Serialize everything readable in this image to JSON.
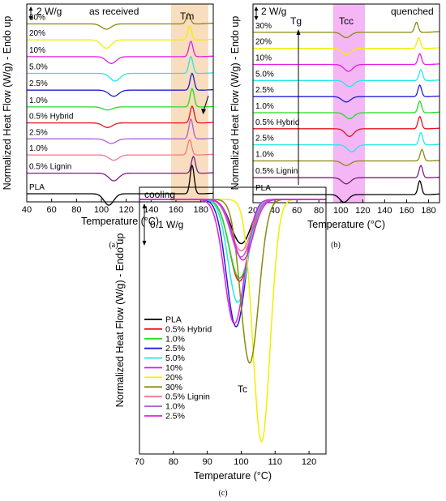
{
  "colors": {
    "PLA": "#000000",
    "0.5% Hybrid": "#e8141b",
    "1.0% Hybrid": "#22dd22",
    "2.5% Hybrid": "#1e1ed2",
    "5.0%": "#22e8e8",
    "10%": "#e41ee4",
    "20%": "#f0f000",
    "30%": "#8a8a10",
    "0.5% Lignin": "#7d1e7d",
    "1.0% Lignin": "#f07888",
    "2.5% Lignin": "#b060d8"
  },
  "chart_data": [
    {
      "type": "line",
      "caption": "(a)",
      "annotation": "as received",
      "scale_bar": "2 W/g",
      "band_label": "Tm",
      "band": [
        156,
        186
      ],
      "band_color": "#f8ddbe",
      "xlabel": "Temperature (°C)",
      "ylabel": "Normalized Heat Flow (W/g) - Endo up",
      "xlim": [
        40,
        190
      ],
      "x_ticks": [
        "40",
        "60",
        "80",
        "100",
        "120",
        "140",
        "160",
        "180"
      ],
      "series": [
        {
          "name": "PLA",
          "label": "PLA",
          "color_key": "PLA",
          "baseline": 0.0,
          "valley": 106,
          "valley_depth": 0.75,
          "peak": 173,
          "peak_height": 1.85
        },
        {
          "name": "0.5% Lignin",
          "label": "0.5% Lignin",
          "color_key": "0.5% Lignin",
          "baseline": 1.35,
          "valley": 110,
          "valley_depth": 0.5,
          "peak": 174,
          "peak_height": 1.1
        },
        {
          "name": "1.0% Lignin",
          "label": "1.0%",
          "color_key": "1.0% Lignin",
          "baseline": 2.55,
          "valley": 110,
          "valley_depth": 0.35,
          "peak": 171,
          "peak_height": 1.0
        },
        {
          "name": "2.5% Lignin",
          "label": "2.5%",
          "color_key": "2.5% Lignin",
          "baseline": 3.6,
          "valley": 108,
          "valley_depth": 0.3,
          "peak": 172,
          "peak_height": 1.3
        },
        {
          "name": "0.5% Hybrid",
          "label": "0.5% Hybrid",
          "color_key": "0.5% Hybrid",
          "baseline": 4.65,
          "valley": 105,
          "valley_depth": 0.3,
          "peak": 173,
          "peak_height": 1.1
        },
        {
          "name": "1.0% Hybrid",
          "label": "1.0%",
          "color_key": "1.0% Hybrid",
          "baseline": 5.7,
          "valley": 105,
          "valley_depth": 0.2,
          "peak": 173,
          "peak_height": 1.2
        },
        {
          "name": "2.5% Hybrid",
          "label": "2.5%",
          "color_key": "2.5% Hybrid",
          "baseline": 6.8,
          "valley": 110,
          "valley_depth": 0.4,
          "peak": 173,
          "peak_height": 1.1
        },
        {
          "name": "5.0%",
          "label": "5.0%",
          "color_key": "5.0%",
          "baseline": 7.9,
          "valley": 111,
          "valley_depth": 0.5,
          "peak": 172,
          "peak_height": 1.1
        },
        {
          "name": "10%",
          "label": "10%",
          "color_key": "10%",
          "baseline": 9.0,
          "valley": 108,
          "valley_depth": 0.45,
          "peak": 172,
          "peak_height": 1.0
        },
        {
          "name": "20%",
          "label": "20%",
          "color_key": "20%",
          "baseline": 10.1,
          "valley": 104,
          "valley_depth": 0.55,
          "peak": 171,
          "peak_height": 0.9
        },
        {
          "name": "30%",
          "label": "30%",
          "color_key": "30%",
          "baseline": 11.15,
          "valley": 104,
          "valley_depth": 0.35,
          "peak": 170,
          "peak_height": 0.7
        }
      ]
    },
    {
      "type": "line",
      "caption": "(b)",
      "annotation": "quenched",
      "scale_bar": "2 W/g",
      "tg_label": "Tg",
      "band_label": "Tcc",
      "band": [
        93,
        122
      ],
      "band_color": "#f4b6f4",
      "xlabel": "Temperature (°C)",
      "ylabel": "Normalized Heat Flow (W/g) - Endo up",
      "xlim": [
        20,
        190
      ],
      "x_ticks": [
        "20",
        "40",
        "60",
        "80",
        "100",
        "120",
        "140",
        "160",
        "180"
      ],
      "series": [
        {
          "name": "PLA",
          "label": "PLA",
          "color_key": "PLA",
          "baseline": 0.0,
          "valley": 103,
          "valley_depth": 0.5,
          "peak": 172,
          "peak_height": 0.9
        },
        {
          "name": "0.5% Lignin",
          "label": "0.5% Lignin",
          "color_key": "0.5% Lignin",
          "baseline": 1.1,
          "valley": 105,
          "valley_depth": 0.4,
          "peak": 173,
          "peak_height": 0.8
        },
        {
          "name": "1.0% Lignin",
          "label": "1.0%",
          "color_key": "30%",
          "baseline": 2.2,
          "valley": 105,
          "valley_depth": 0.3,
          "peak": 174,
          "peak_height": 0.75
        },
        {
          "name": "2.5% Lignin",
          "label": "2.5%",
          "color_key": "5.0%",
          "baseline": 3.25,
          "valley": 110,
          "valley_depth": 0.45,
          "peak": 173,
          "peak_height": 0.8
        },
        {
          "name": "0.5% Hybrid",
          "label": "0.5% Hybrid",
          "color_key": "0.5% Hybrid",
          "baseline": 4.3,
          "valley": 108,
          "valley_depth": 0.5,
          "peak": 172,
          "peak_height": 0.8
        },
        {
          "name": "1.0% Hybrid",
          "label": "1.0%",
          "color_key": "1.0% Hybrid",
          "baseline": 5.35,
          "valley": 108,
          "valley_depth": 0.4,
          "peak": 172,
          "peak_height": 0.75
        },
        {
          "name": "2.5% Hybrid",
          "label": "2.5%",
          "color_key": "2.5% Hybrid",
          "baseline": 6.4,
          "valley": 105,
          "valley_depth": 0.35,
          "peak": 172,
          "peak_height": 0.75
        },
        {
          "name": "5.0%",
          "label": "5.0%",
          "color_key": "5.0%",
          "baseline": 7.45,
          "valley": 108,
          "valley_depth": 0.4,
          "peak": 173,
          "peak_height": 0.7
        },
        {
          "name": "10%",
          "label": "10%",
          "color_key": "10%",
          "baseline": 8.5,
          "valley": 107,
          "valley_depth": 0.45,
          "peak": 172,
          "peak_height": 0.7
        },
        {
          "name": "20%",
          "label": "20%",
          "color_key": "20%",
          "baseline": 9.55,
          "valley": 105,
          "valley_depth": 0.4,
          "peak": 171,
          "peak_height": 0.7
        },
        {
          "name": "30%",
          "label": "30%",
          "color_key": "30%",
          "baseline": 10.6,
          "valley": 105,
          "valley_depth": 0.35,
          "peak": 169,
          "peak_height": 0.65
        }
      ]
    },
    {
      "type": "line",
      "caption": "(c)",
      "annotation": "cooling",
      "scale_bar": "0.1 W/g",
      "tc_label": "Tc",
      "xlabel": "Temperature (°C)",
      "ylabel": "Normalized Heat Flow (W/g) - Endo up",
      "xlim": [
        70,
        125
      ],
      "ylim": [
        -0.42,
        0.02
      ],
      "x_ticks": [
        "70",
        "80",
        "90",
        "100",
        "110",
        "120"
      ],
      "legend_position": "bottom-left",
      "series": [
        {
          "name": "PLA",
          "color_key": "PLA",
          "peak": 100,
          "depth": 0.073,
          "width": 4.2
        },
        {
          "name": "0.5% Hybrid",
          "color_key": "0.5% Hybrid",
          "peak": 99.5,
          "depth": 0.135,
          "width": 4.2
        },
        {
          "name": "1.0%",
          "color_key": "1.0% Hybrid",
          "peak": 99.5,
          "depth": 0.13,
          "width": 4.3
        },
        {
          "name": "2.5%",
          "color_key": "2.5% Hybrid",
          "peak": 98.5,
          "depth": 0.21,
          "width": 4.0
        },
        {
          "name": "5.0%",
          "color_key": "5.0%",
          "peak": 99,
          "depth": 0.17,
          "width": 4.0
        },
        {
          "name": "10%",
          "color_key": "10%",
          "peak": 98,
          "depth": 0.205,
          "width": 4.2
        },
        {
          "name": "20%",
          "color_key": "20%",
          "peak": 106,
          "depth": 0.4,
          "width": 3.6
        },
        {
          "name": "30%",
          "color_key": "30%",
          "peak": 102.5,
          "depth": 0.27,
          "width": 3.8
        },
        {
          "name": "0.5% Lignin",
          "color_key": "1.0% Lignin",
          "peak": 100,
          "depth": 0.085,
          "width": 4.2
        },
        {
          "name": "1.0%",
          "color_key": "2.5% Lignin",
          "peak": 100,
          "depth": 0.095,
          "width": 4.2
        },
        {
          "name": "2.5%",
          "color_key": "10%",
          "peak": 100.5,
          "depth": 0.1,
          "width": 4.2
        }
      ]
    }
  ]
}
